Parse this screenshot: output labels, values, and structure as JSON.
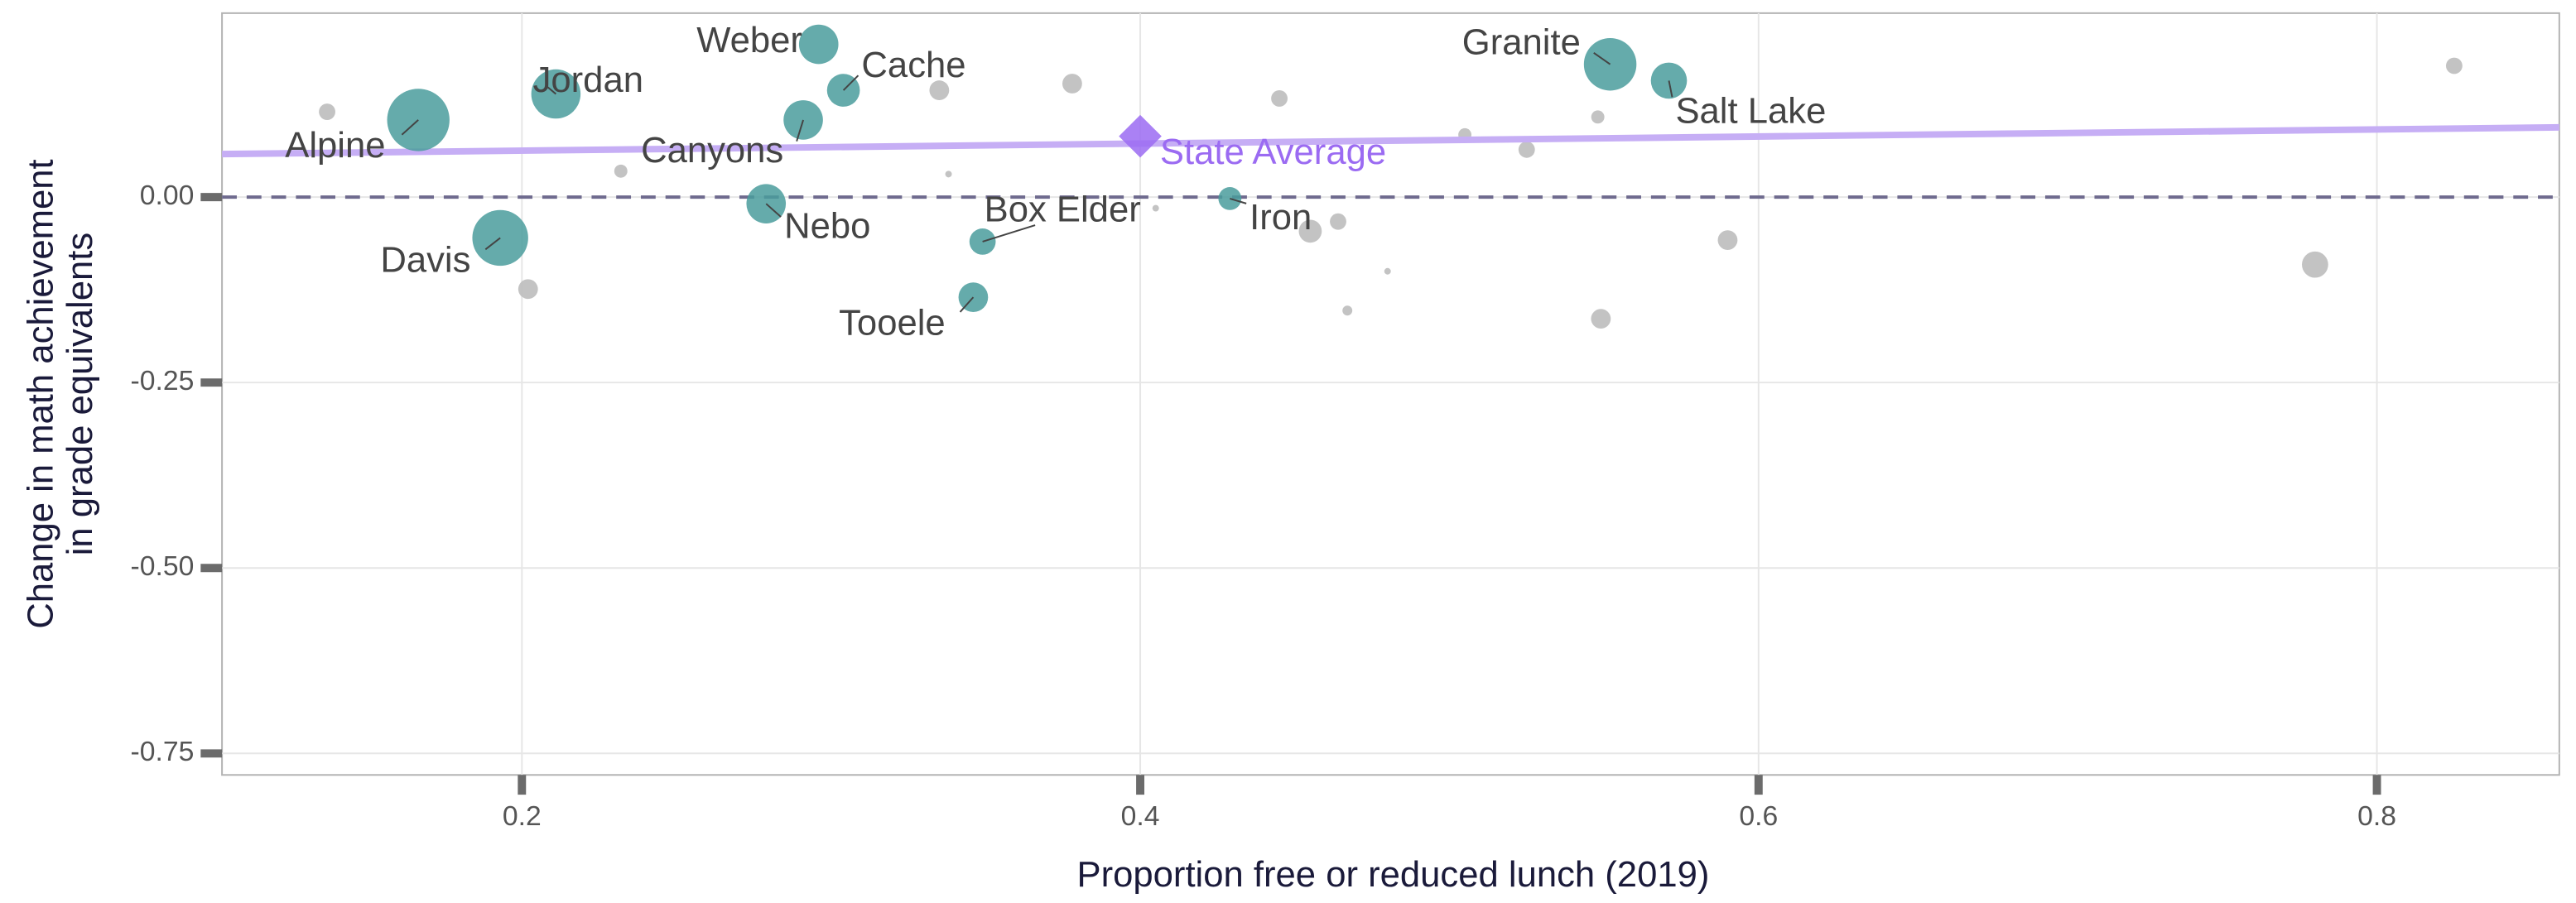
{
  "chart_data": {
    "type": "bubble",
    "xlabel": "Proportion free or reduced lunch (2019)",
    "ylabel": [
      "Change in math achievement",
      "in grade equivalents"
    ],
    "xlim": [
      0.103,
      0.859
    ],
    "ylim": [
      -0.779,
      0.248
    ],
    "xticks": [
      0.2,
      0.4,
      0.6,
      0.8
    ],
    "yticks": [
      {
        "value": 0,
        "label": "0.00"
      },
      {
        "value": -0.25,
        "label": "-0.25"
      },
      {
        "value": -0.5,
        "label": "-0.50"
      },
      {
        "value": -0.75,
        "label": "-0.75"
      }
    ],
    "grid": true,
    "reference_line": 0,
    "labeled": {
      "color": "#4a9c9c",
      "labels": [
        "Alpine",
        "Jordan",
        "Davis",
        "Weber",
        "Cache",
        "Canyons",
        "Nebo",
        "Box Elder",
        "Tooele",
        "Iron",
        "Granite",
        "Salt Lake"
      ],
      "x": [
        0.1665,
        0.211,
        0.193,
        0.296,
        0.304,
        0.291,
        0.279,
        0.349,
        0.346,
        0.429,
        0.552,
        0.571
      ],
      "y": [
        0.104,
        0.139,
        -0.055,
        0.206,
        0.144,
        0.104,
        -0.009,
        -0.06,
        -0.135,
        -0.002,
        0.179,
        0.157
      ],
      "sizes": [
        19,
        15,
        17,
        12,
        10,
        12,
        12,
        8,
        9,
        7,
        16,
        11
      ]
    },
    "unlabeled": {
      "color": "#bdbdbd",
      "x": [
        0.137,
        0.232,
        0.202,
        0.335,
        0.378,
        0.338,
        0.405,
        0.445,
        0.455,
        0.464,
        0.467,
        0.48,
        0.505,
        0.525,
        0.548,
        0.549,
        0.59,
        0.78,
        0.825
      ],
      "y": [
        0.115,
        0.035,
        -0.124,
        0.144,
        0.153,
        0.031,
        -0.015,
        0.133,
        -0.046,
        -0.033,
        -0.153,
        -0.1,
        0.084,
        0.064,
        0.108,
        -0.164,
        -0.058,
        -0.091,
        0.177
      ],
      "sizes": [
        5,
        4,
        6,
        6,
        6,
        2,
        2,
        5,
        7,
        5,
        3,
        2,
        4,
        5,
        4,
        6,
        6,
        8,
        5
      ]
    },
    "state_average": {
      "label": "State Average",
      "x": 0.4,
      "y": 0.082,
      "color": "#9b6bf2"
    },
    "trend": {
      "color": "#c6aef5",
      "x": [
        0.103,
        0.859
      ],
      "values": [
        0.058,
        0.094
      ]
    }
  }
}
